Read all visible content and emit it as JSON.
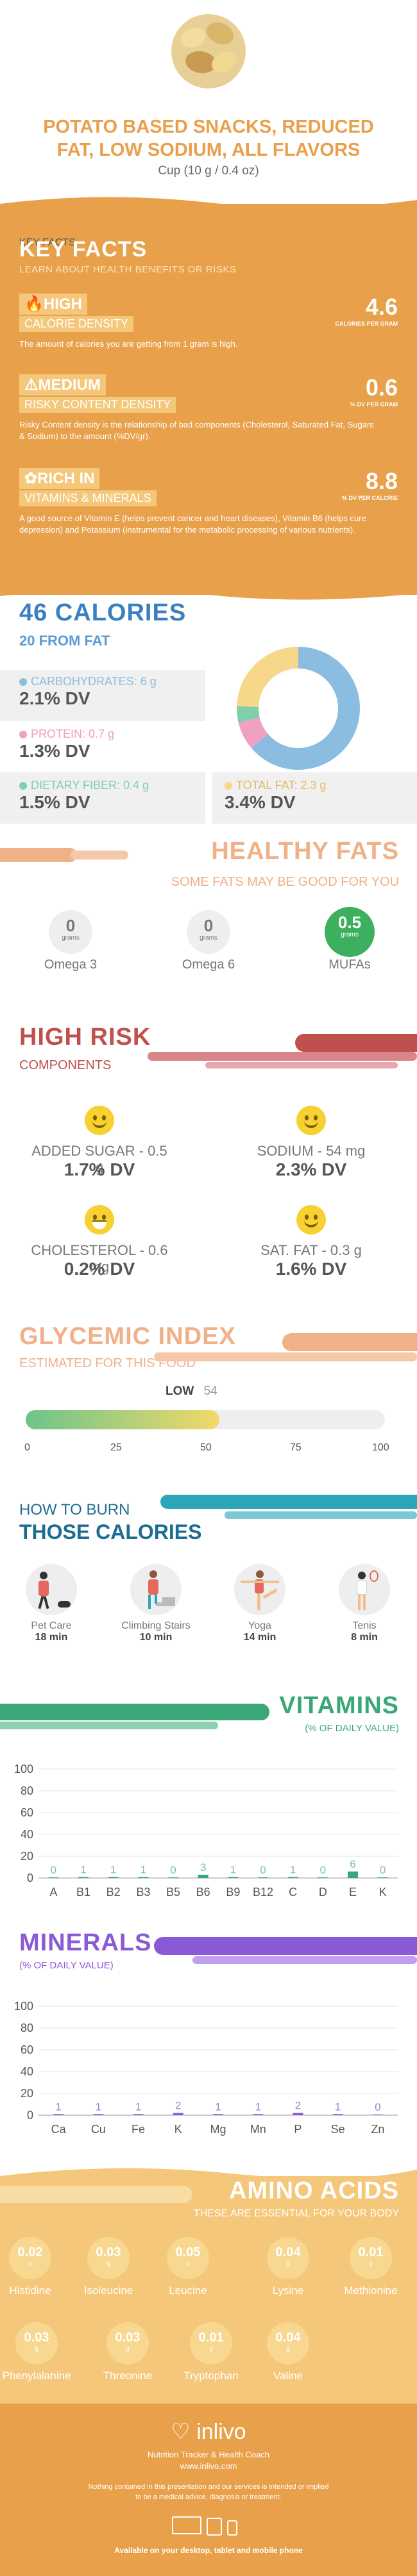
{
  "header": {
    "title_line1": "POTATO BASED SNACKS, REDUCED",
    "title_line2": "FAT, LOW SODIUM, ALL FLAVORS",
    "serving": "Cup (10 g / 0.4 oz)"
  },
  "key_facts": {
    "title": "KEY FACTS",
    "subtitle": "LEARN ABOUT HEALTH BENEFITS OR RISKS",
    "items": [
      {
        "level": "HIGH",
        "label": "CALORIE DENSITY",
        "value": "4.6",
        "unit": "CALORIES PER GRAM",
        "desc": "The amount of calories you are getting from 1 gram is high.",
        "icon": "fire-icon"
      },
      {
        "level": "MEDIUM",
        "label": "RISKY CONTENT DENSITY",
        "value": "0.6",
        "unit": "% DV PER GRAM",
        "desc": "Risky Content density is the relationship of bad components (Cholesterol, Saturated Fat, Sugars & Sodium) to the amount (%DV/gr).",
        "icon": "warning-icon"
      },
      {
        "level": "RICH IN",
        "label": "VITAMINS & MINERALS",
        "value": "8.8",
        "unit": "% DV PER CALORIE",
        "desc": "A good source of Vitamin E (helps prevent cancer and heart diseases), Vitamin B6 (helps cure depression) and Potassium (instrumental for the metabolic processing of various nutrients).",
        "icon": "leaf-icon"
      }
    ]
  },
  "calories": {
    "title": "46 CALORIES",
    "subtitle": "20 FROM FAT",
    "nutrients": [
      {
        "label": "CARBOHYDRATES: 6 g",
        "dv": "2.1% DV",
        "color": "#8bbde0"
      },
      {
        "label": "PROTEIN: 0.7 g",
        "dv": "1.3% DV",
        "color": "#f0a0c0"
      },
      {
        "label": "DIETARY FIBER: 0.4 g",
        "dv": "1.5% DV",
        "color": "#7fcfa8"
      },
      {
        "label": "TOTAL FAT: 2.3 g",
        "dv": "3.4% DV",
        "color": "#f7d88a"
      }
    ]
  },
  "healthy_fats": {
    "title": "HEALTHY FATS",
    "subtitle": "SOME FATS MAY BE GOOD FOR YOU",
    "items": [
      {
        "value": "0",
        "unit": "grams",
        "name": "Omega 3"
      },
      {
        "value": "0",
        "unit": "grams",
        "name": "Omega 6"
      },
      {
        "value": "0.5",
        "unit": "grams",
        "name": "MUFAs"
      }
    ]
  },
  "high_risk": {
    "title": "HIGH RISK",
    "subtitle": "COMPONENTS",
    "items": [
      {
        "name": "ADDED SUGAR - 0.5 g",
        "dv": "1.7% DV"
      },
      {
        "name": "SODIUM - 54 mg",
        "dv": "2.3% DV"
      },
      {
        "name": "CHOLESTEROL - 0.6 mg",
        "dv": "0.2% DV"
      },
      {
        "name": "SAT. FAT - 0.3 g",
        "dv": "1.6% DV"
      }
    ]
  },
  "glycemic": {
    "title": "GLYCEMIC INDEX",
    "subtitle": "ESTIMATED FOR THIS FOOD",
    "level": "LOW",
    "value": "54",
    "fraction": 0.54,
    "ticks": [
      "0",
      "25",
      "50",
      "75",
      "100"
    ]
  },
  "burn": {
    "title1": "HOW TO BURN",
    "title2": "THOSE CALORIES",
    "items": [
      {
        "name": "Pet Care",
        "time": "18 min",
        "icon": "dog-walking-icon"
      },
      {
        "name": "Climbing Stairs",
        "time": "10 min",
        "icon": "stairs-icon"
      },
      {
        "name": "Yoga",
        "time": "14 min",
        "icon": "yoga-icon"
      },
      {
        "name": "Tenis",
        "time": "8 min",
        "icon": "tennis-icon"
      }
    ]
  },
  "vitamins": {
    "title": "VITAMINS",
    "subtitle": "(% OF DAILY VALUE)"
  },
  "minerals": {
    "title": "MINERALS",
    "subtitle": "(% OF DAILY VALUE)"
  },
  "amino": {
    "title": "AMINO ACIDS",
    "subtitle": "THESE ARE ESSENTIAL FOR YOUR BODY",
    "items": [
      {
        "value": "0.02",
        "unit": "g",
        "name": "Histidine"
      },
      {
        "value": "0.03",
        "unit": "g",
        "name": "Isoleucine"
      },
      {
        "value": "0.05",
        "unit": "g",
        "name": "Leucine"
      },
      {
        "value": "0.04",
        "unit": "g",
        "name": "Lysine"
      },
      {
        "value": "0.01",
        "unit": "g",
        "name": "Methionine"
      },
      {
        "value": "0.03",
        "unit": "g",
        "name": "Phenylalanine"
      },
      {
        "value": "0.03",
        "unit": "g",
        "name": "Threonine"
      },
      {
        "value": "0.01",
        "unit": "g",
        "name": "Tryptophan"
      },
      {
        "value": "0.04",
        "unit": "g",
        "name": "Valine"
      }
    ]
  },
  "footer": {
    "brand": "inlivo",
    "tagline": "Nutrition Tracker & Health Coach",
    "url": "www.inlivo.com",
    "disclaimer1": "Nothing contained in this presentation and our services is intended or implied",
    "disclaimer2": "to be a medical advice, diagnosis or treatment.",
    "available": "Available on your desktop, tablet and mobile phone"
  },
  "colors": {
    "orange": "#e8a04a",
    "blue": "#3a7fc1",
    "salmon": "#f0b088",
    "red": "#c0504d",
    "green": "#3aa876",
    "purple": "#8a5ad6",
    "amber": "#f4c77a"
  },
  "chart_data": [
    {
      "type": "pie",
      "categories": [
        "CARBOHYDRATES",
        "PROTEIN",
        "DIETARY FIBER",
        "TOTAL FAT"
      ],
      "values": [
        6,
        0.7,
        0.4,
        2.3
      ]
    },
    {
      "type": "bar",
      "title": "VITAMINS",
      "ylabel": "(% OF DAILY VALUE)",
      "categories": [
        "A",
        "B1",
        "B2",
        "B3",
        "B5",
        "B6",
        "B9",
        "B12",
        "C",
        "D",
        "E",
        "K"
      ],
      "values": [
        0,
        1,
        1,
        1,
        0,
        3,
        1,
        0,
        1,
        0,
        6,
        0
      ],
      "ylim": [
        0,
        100
      ],
      "yticks": [
        "0",
        "20",
        "40",
        "60",
        "80",
        "100"
      ]
    },
    {
      "type": "bar",
      "title": "MINERALS",
      "ylabel": "(% OF DAILY VALUE)",
      "categories": [
        "Ca",
        "Cu",
        "Fe",
        "K",
        "Mg",
        "Mn",
        "P",
        "Se",
        "Zn"
      ],
      "values": [
        1,
        1,
        1,
        2,
        1,
        1,
        2,
        1,
        0
      ],
      "ylim": [
        0,
        100
      ],
      "yticks": [
        "0",
        "20",
        "40",
        "60",
        "80",
        "100"
      ]
    }
  ]
}
